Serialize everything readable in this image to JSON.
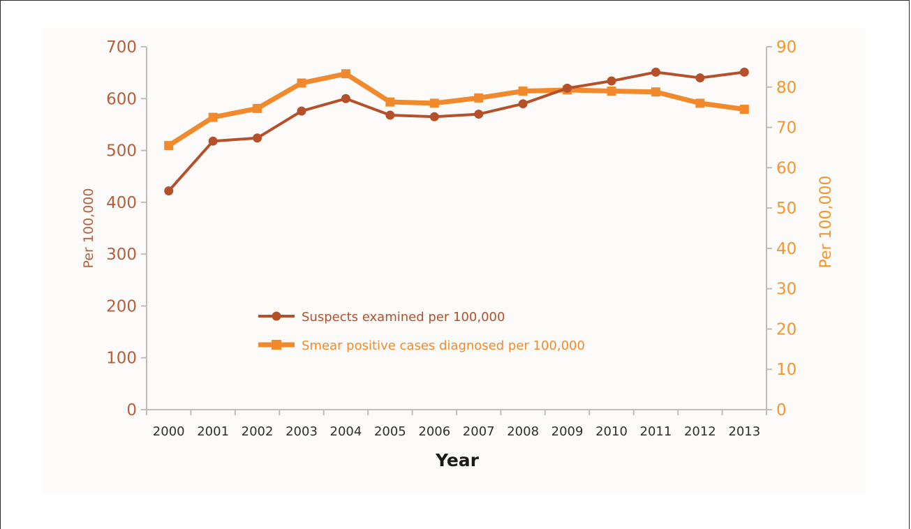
{
  "chart_data": {
    "type": "line",
    "x": [
      "2000",
      "2001",
      "2002",
      "2003",
      "2004",
      "2005",
      "2006",
      "2007",
      "2008",
      "2009",
      "2010",
      "2011",
      "2012",
      "2013"
    ],
    "xlabel": "Year",
    "ylabel_left": "Per 100,000",
    "ylabel_right": "Per 100,000",
    "ylim_left": [
      0,
      700
    ],
    "ylim_right": [
      0,
      90
    ],
    "yticks_left": [
      "0",
      "100",
      "200",
      "300",
      "400",
      "500",
      "600",
      "700"
    ],
    "yticks_right": [
      "0",
      "10",
      "20",
      "30",
      "40",
      "50",
      "60",
      "70",
      "80",
      "90"
    ],
    "grid": false,
    "legend_position": "lower-center",
    "series": [
      {
        "name": "Suspects examined per 100,000",
        "axis": "left",
        "color": "#b5512a",
        "marker": "circle",
        "values": [
          422,
          518,
          524,
          576,
          600,
          568,
          565,
          570,
          590,
          620,
          634,
          651,
          640,
          651
        ]
      },
      {
        "name": "Smear positive cases diagnosed per 100,000",
        "axis": "right",
        "color": "#f08a2c",
        "marker": "square",
        "values": [
          65.5,
          72.5,
          74.7,
          81.0,
          83.3,
          76.3,
          76.0,
          77.3,
          79.0,
          79.3,
          79.0,
          78.8,
          76.0,
          74.5
        ]
      }
    ],
    "colors": {
      "left_axis": "#b5603a",
      "right_axis": "#f2962f",
      "axis_line": "#bdbdbd",
      "tick_label": "#2e2e2e"
    }
  }
}
